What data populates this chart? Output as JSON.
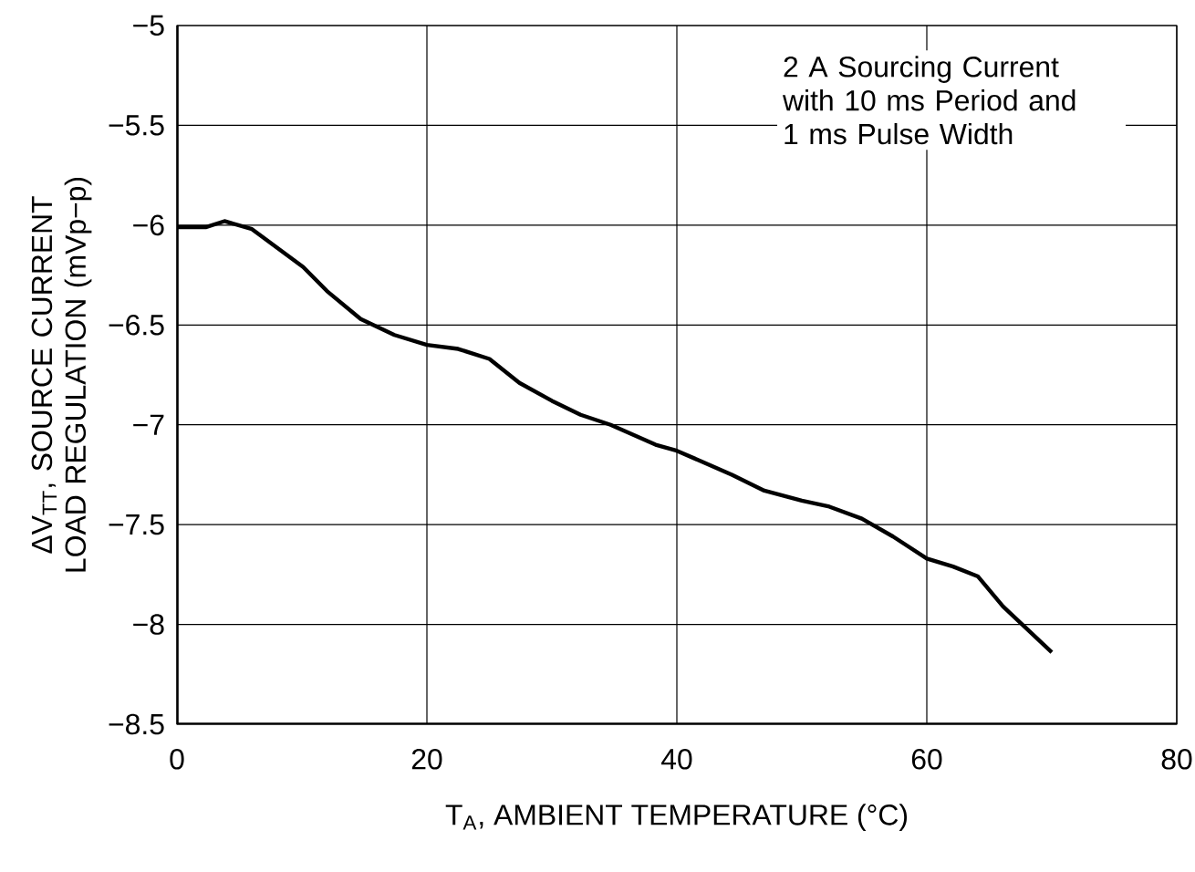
{
  "chart_data": {
    "type": "line",
    "xlabel": "T$_{A}$, AMBIENT TEMPERATURE (°C)",
    "ylabel": "ΔV$_{TT}$, SOURCE CURRENT LOAD REGULATION (mVp−p)",
    "annotations": [
      "2 A Sourcing Current with 10 ms Period and 1 ms Pulse Width"
    ],
    "x": [
      0,
      2.3,
      3.8,
      6,
      10.1,
      12,
      14.7,
      17.4,
      20,
      22.5,
      25,
      27.4,
      30,
      32.3,
      34.7,
      38.3,
      40,
      44.4,
      47,
      50,
      52.2,
      54.8,
      57.3,
      60,
      62.1,
      64.1,
      66.1,
      70
    ],
    "series": [
      {
        "color": "#000000",
        "values": [
          -6.01,
          -6.01,
          -5.98,
          -6.02,
          -6.21,
          -6.33,
          -6.47,
          -6.55,
          -6.6,
          -6.62,
          -6.67,
          -6.79,
          -6.88,
          -6.95,
          -7.0,
          -7.1,
          -7.13,
          -7.25,
          -7.33,
          -7.38,
          -7.41,
          -7.47,
          -7.56,
          -7.67,
          -7.71,
          -7.76,
          -7.91,
          -8.14
        ]
      }
    ],
    "xlim": [
      0,
      80
    ],
    "xticks": [
      0,
      20,
      40,
      60,
      80
    ],
    "ylim": [
      -8.5,
      -5
    ],
    "yticks": [
      {
        "value": -8.5,
        "label": "−8.5"
      },
      {
        "value": -8,
        "label": "−8"
      },
      {
        "value": -7.5,
        "label": "−7.5"
      },
      {
        "value": -7,
        "label": "−7"
      },
      {
        "value": -6.5,
        "label": "−6.5"
      },
      {
        "value": -6,
        "label": "−6"
      },
      {
        "value": -5.5,
        "label": "−5.5"
      },
      {
        "value": -5,
        "label": "−5"
      }
    ],
    "grid": true,
    "marker": "none",
    "line_style": "solid"
  }
}
